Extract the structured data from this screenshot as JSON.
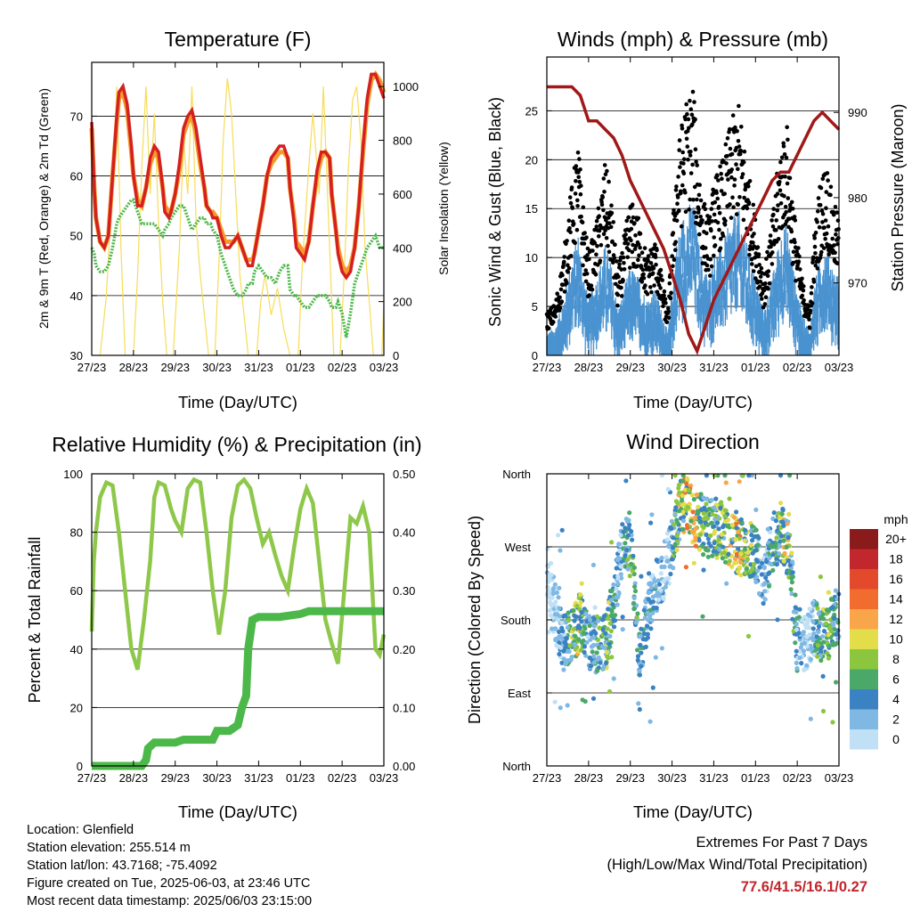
{
  "time_ticks": [
    "27/23",
    "28/23",
    "29/23",
    "30/23",
    "31/23",
    "01/23",
    "02/23",
    "03/23"
  ],
  "xlabel": "Time (Day/UTC)",
  "colors": {
    "temp_2m": "#d42020",
    "temp_9m": "#f59a2a",
    "dewpoint": "#4db84a",
    "solar": "#f7dc58",
    "wind": "#4a93d0",
    "gust": "#000000",
    "pressure": "#a01818",
    "rh": "#8ec84a",
    "rain": "#4db84a"
  },
  "chart_data": [
    {
      "id": "temperature",
      "type": "line",
      "title": "Temperature (F)",
      "ylabel": "2m & 9m T (Red, Orange) & 2m Td (Green)",
      "y2label": "Solar Insolation (Yellow)",
      "ylim": [
        30,
        79
      ],
      "y2lim": [
        0,
        1090
      ],
      "yticks": [
        30,
        40,
        50,
        60,
        70
      ],
      "y2ticks": [
        0,
        200,
        400,
        600,
        800,
        1000
      ],
      "x": [
        0,
        0.06,
        0.1,
        0.2,
        0.3,
        0.4,
        0.5,
        0.6,
        0.65,
        0.75,
        0.85,
        0.95,
        1.0,
        1.1,
        1.2,
        1.3,
        1.4,
        1.5,
        1.6,
        1.7,
        1.75,
        1.85,
        1.9,
        2.0,
        2.1,
        2.2,
        2.3,
        2.4,
        2.5,
        2.6,
        2.7,
        2.75,
        2.85,
        2.9,
        3.0,
        3.1,
        3.2,
        3.3,
        3.4,
        3.5,
        3.6,
        3.7,
        3.75,
        3.85,
        3.9,
        4.0,
        4.1,
        4.2,
        4.3,
        4.4,
        4.5,
        4.6,
        4.7,
        4.75,
        4.85,
        4.9,
        5.0,
        5.1,
        5.2,
        5.3,
        5.4,
        5.5,
        5.6,
        5.7,
        5.75,
        5.85,
        5.9,
        6.0,
        6.1,
        6.2,
        6.3,
        6.4,
        6.5,
        6.6,
        6.7,
        6.8,
        6.9,
        7.0
      ],
      "series": [
        {
          "name": "2m T",
          "values": [
            69,
            58,
            53,
            49,
            48,
            50,
            60,
            70,
            74,
            75,
            72,
            65,
            60,
            55,
            55,
            58,
            63,
            65,
            64,
            58,
            54,
            53,
            54,
            57,
            62,
            68,
            70,
            71,
            68,
            63,
            58,
            55,
            54,
            53,
            53,
            50,
            48,
            48,
            49,
            50,
            48,
            46,
            45,
            45,
            47,
            51,
            55,
            60,
            63,
            64,
            65,
            65,
            63,
            58,
            52,
            48,
            47,
            46,
            49,
            55,
            61,
            64,
            64,
            63,
            57,
            51,
            47,
            44,
            43,
            44,
            48,
            55,
            65,
            73,
            77,
            77,
            75,
            73
          ]
        },
        {
          "name": "9m T",
          "values": [
            68,
            58,
            53,
            49,
            48,
            50,
            60,
            69,
            73,
            74,
            71,
            64,
            60,
            56,
            55,
            58,
            62,
            64,
            63,
            58,
            55,
            54,
            54,
            57,
            61,
            67,
            69,
            70,
            67,
            62,
            58,
            55,
            54,
            54,
            53,
            51,
            49,
            49,
            49,
            50,
            48,
            46,
            46,
            46,
            47,
            51,
            55,
            60,
            62,
            63,
            64,
            64,
            63,
            58,
            53,
            49,
            48,
            47,
            49,
            55,
            60,
            63,
            64,
            63,
            57,
            51,
            48,
            45,
            44,
            45,
            48,
            55,
            64,
            72,
            76,
            77,
            76,
            74
          ]
        },
        {
          "name": "2m Td",
          "values": [
            48,
            47,
            45,
            44,
            44,
            45,
            48,
            52,
            53,
            54,
            55,
            56,
            56,
            54,
            52,
            52,
            52,
            52,
            51,
            50,
            51,
            52,
            53,
            54,
            55,
            55,
            53,
            51,
            52,
            53,
            53,
            52,
            52,
            51,
            50,
            47,
            45,
            43,
            41,
            40,
            40,
            41,
            42,
            42,
            44,
            45,
            44,
            43,
            43,
            42,
            44,
            45,
            45,
            41,
            40,
            40,
            39,
            38,
            38,
            39,
            40,
            40,
            40,
            39,
            38,
            38,
            39,
            37,
            33,
            37,
            42,
            44,
            46,
            48,
            49,
            50,
            48,
            48
          ]
        }
      ],
      "solar": [
        {
          "x": [
            0.2,
            0.35,
            0.5,
            0.6,
            0.7,
            0.8
          ],
          "y": [
            0,
            220,
            650,
            1000,
            400,
            0
          ]
        },
        {
          "x": [
            1.0,
            1.1,
            1.2,
            1.3,
            1.4,
            1.5,
            1.6,
            1.7,
            1.8
          ],
          "y": [
            0,
            300,
            700,
            1000,
            600,
            900,
            500,
            200,
            0
          ]
        },
        {
          "x": [
            1.95,
            2.1,
            2.2,
            2.3,
            2.4,
            2.5,
            2.6,
            2.8
          ],
          "y": [
            0,
            400,
            800,
            600,
            1000,
            500,
            300,
            0
          ]
        },
        {
          "x": [
            2.95,
            3.05,
            3.15,
            3.25,
            3.35,
            3.45,
            3.55,
            3.75
          ],
          "y": [
            0,
            350,
            800,
            1030,
            900,
            600,
            300,
            0
          ]
        },
        {
          "x": [
            3.95,
            4.05,
            4.15,
            4.3,
            4.45,
            4.6,
            4.75
          ],
          "y": [
            0,
            200,
            300,
            150,
            250,
            100,
            0
          ]
        },
        {
          "x": [
            4.95,
            5.05,
            5.2,
            5.3,
            5.45,
            5.55,
            5.7,
            5.8
          ],
          "y": [
            0,
            350,
            700,
            900,
            600,
            1000,
            400,
            0
          ]
        },
        {
          "x": [
            5.95,
            6.05,
            6.15,
            6.25,
            6.35,
            6.45,
            6.55,
            6.75
          ],
          "y": [
            0,
            300,
            700,
            950,
            1000,
            800,
            400,
            0
          ]
        },
        {
          "x": [
            6.95,
            7.0
          ],
          "y": [
            0,
            200
          ]
        }
      ]
    },
    {
      "id": "winds",
      "type": "line",
      "title": "Winds (mph) & Pressure (mb)",
      "ylabel": "Sonic Wind & Gust (Blue, Black)",
      "y2label": "Station Pressure (Maroon)",
      "ylim": [
        0,
        30.5
      ],
      "y2lim": [
        961.5,
        996.5
      ],
      "yticks": [
        0,
        5,
        10,
        15,
        20,
        25
      ],
      "y2ticks": [
        970,
        980,
        990
      ],
      "wind_profile": {
        "x": [
          0,
          0.2,
          0.4,
          0.55,
          0.75,
          0.9,
          1.0,
          1.2,
          1.4,
          1.55,
          1.7,
          1.85,
          2.0,
          2.2,
          2.4,
          2.6,
          2.75,
          2.9,
          3.1,
          3.3,
          3.5,
          3.6,
          3.75,
          3.9,
          4.0,
          4.2,
          4.4,
          4.6,
          4.8,
          5.0,
          5.2,
          5.4,
          5.6,
          5.75,
          5.9,
          6.1,
          6.3,
          6.4,
          6.55,
          6.7,
          6.85,
          7.0
        ],
        "y": [
          2,
          2.5,
          5,
          8,
          11,
          7,
          5,
          7,
          10,
          8,
          4,
          6,
          8,
          7,
          5,
          6,
          4,
          2,
          10,
          13,
          14,
          11,
          8,
          7,
          9,
          10,
          12,
          13,
          10,
          7,
          4,
          7,
          11,
          12,
          8,
          4,
          2,
          6,
          9,
          10,
          8,
          7
        ]
      },
      "pressure": {
        "x": [
          0,
          0.3,
          0.5,
          0.6,
          0.8,
          1.0,
          1.2,
          1.4,
          1.6,
          1.8,
          2.0,
          2.2,
          2.4,
          2.6,
          2.8,
          3.0,
          3.2,
          3.4,
          3.6,
          3.8,
          4.0,
          4.2,
          4.4,
          4.6,
          4.8,
          5.0,
          5.2,
          5.4,
          5.6,
          5.8,
          6.0,
          6.2,
          6.4,
          6.6,
          6.8,
          7.0
        ],
        "y": [
          993,
          993,
          993,
          993,
          992,
          989,
          989,
          988,
          987,
          985,
          982,
          980,
          978,
          976,
          974,
          971,
          968,
          964,
          962,
          965,
          968,
          970,
          972,
          974,
          976,
          978,
          980,
          982,
          983,
          983,
          985,
          987,
          989,
          990,
          989,
          988
        ]
      }
    },
    {
      "id": "rh_precip",
      "type": "line",
      "title": "Relative Humidity (%) & Precipitation (in)",
      "ylabel": "Percent & Total Rainfall",
      "ylim": [
        0,
        100
      ],
      "y2lim": [
        0,
        0.5
      ],
      "yticks": [
        0,
        20,
        40,
        60,
        80,
        100
      ],
      "y2ticks": [
        "0.00",
        "0.10",
        "0.20",
        "0.30",
        "0.40",
        "0.50"
      ],
      "rh": {
        "x": [
          0,
          0.05,
          0.1,
          0.2,
          0.35,
          0.5,
          0.65,
          0.8,
          0.95,
          1.1,
          1.25,
          1.4,
          1.5,
          1.6,
          1.75,
          1.9,
          2.0,
          2.15,
          2.3,
          2.45,
          2.6,
          2.75,
          2.9,
          3.05,
          3.2,
          3.35,
          3.5,
          3.65,
          3.8,
          3.95,
          4.1,
          4.25,
          4.4,
          4.55,
          4.7,
          4.85,
          5.0,
          5.15,
          5.3,
          5.45,
          5.6,
          5.75,
          5.9,
          6.05,
          6.2,
          6.35,
          6.5,
          6.65,
          6.8,
          6.9,
          7.0
        ],
        "y": [
          46,
          70,
          80,
          92,
          97,
          96,
          80,
          60,
          40,
          33,
          50,
          70,
          92,
          97,
          96,
          88,
          84,
          80,
          95,
          98,
          97,
          80,
          60,
          45,
          60,
          85,
          96,
          98,
          95,
          85,
          76,
          80,
          72,
          65,
          60,
          75,
          88,
          95,
          90,
          70,
          50,
          42,
          35,
          60,
          85,
          83,
          89,
          80,
          40,
          38,
          45
        ]
      },
      "rain": {
        "x": [
          0,
          0.5,
          1.0,
          1.2,
          1.3,
          1.35,
          1.5,
          2.0,
          2.2,
          2.5,
          2.9,
          3.0,
          3.1,
          3.3,
          3.5,
          3.6,
          3.7,
          3.75,
          3.85,
          4.0,
          4.5,
          5.0,
          5.2,
          5.3,
          5.5,
          6.0,
          6.5,
          7.0
        ],
        "y": [
          0,
          0,
          0,
          0,
          0.01,
          0.03,
          0.04,
          0.04,
          0.045,
          0.045,
          0.045,
          0.06,
          0.06,
          0.06,
          0.07,
          0.1,
          0.12,
          0.2,
          0.25,
          0.255,
          0.255,
          0.26,
          0.265,
          0.265,
          0.265,
          0.265,
          0.265,
          0.265
        ]
      }
    },
    {
      "id": "wind_direction",
      "type": "scatter",
      "title": "Wind Direction",
      "ylabel": "Direction (Colored By Speed)",
      "ylim": [
        0,
        360
      ],
      "yticks": [
        {
          "v": 0,
          "label": "North"
        },
        {
          "v": 90,
          "label": "East"
        },
        {
          "v": 180,
          "label": "South"
        },
        {
          "v": 270,
          "label": "West"
        },
        {
          "v": 360,
          "label": "North"
        }
      ],
      "centers": {
        "x": [
          0,
          0.2,
          0.4,
          0.6,
          0.8,
          1.0,
          1.2,
          1.4,
          1.6,
          1.8,
          2.0,
          2.2,
          2.4,
          2.6,
          2.8,
          3.0,
          3.2,
          3.4,
          3.6,
          3.8,
          4.0,
          4.2,
          4.4,
          4.6,
          4.8,
          5.0,
          5.2,
          5.4,
          5.6,
          5.8,
          6.0,
          6.2,
          6.4,
          6.6,
          6.8,
          7.0
        ],
        "y": [
          240,
          190,
          150,
          160,
          180,
          150,
          150,
          150,
          200,
          270,
          280,
          140,
          180,
          220,
          240,
          270,
          320,
          320,
          300,
          300,
          290,
          290,
          280,
          270,
          270,
          260,
          230,
          270,
          290,
          265,
          150,
          150,
          170,
          160,
          170,
          190
        ]
      },
      "speed": {
        "x": [
          0,
          0.2,
          0.4,
          0.55,
          0.75,
          0.9,
          1.0,
          1.2,
          1.4,
          1.55,
          1.7,
          1.85,
          2.0,
          2.2,
          2.4,
          2.6,
          2.75,
          2.9,
          3.1,
          3.3,
          3.5,
          3.6,
          3.75,
          3.9,
          4.0,
          4.2,
          4.4,
          4.6,
          4.8,
          5.0,
          5.2,
          5.4,
          5.6,
          5.75,
          5.9,
          6.1,
          6.3,
          6.4,
          6.55,
          6.7,
          6.85,
          7.0
        ],
        "y": [
          2,
          2.5,
          5,
          8,
          11,
          7,
          5,
          7,
          10,
          8,
          4,
          6,
          8,
          7,
          5,
          6,
          4,
          2,
          10,
          13,
          14,
          11,
          8,
          7,
          9,
          10,
          12,
          13,
          10,
          7,
          4,
          7,
          11,
          12,
          8,
          4,
          2,
          6,
          9,
          10,
          8,
          7
        ]
      },
      "legend_title": "mph",
      "legend": [
        {
          "label": "20+",
          "color": "#8b1a1a"
        },
        {
          "label": "18",
          "color": "#c1272d"
        },
        {
          "label": "16",
          "color": "#e34a2c"
        },
        {
          "label": "14",
          "color": "#f26b2f"
        },
        {
          "label": "12",
          "color": "#f9a64a"
        },
        {
          "label": "10",
          "color": "#e3dd4a"
        },
        {
          "label": "8",
          "color": "#8cc63f"
        },
        {
          "label": "6",
          "color": "#4aa968"
        },
        {
          "label": "4",
          "color": "#3a82c2"
        },
        {
          "label": "2",
          "color": "#7fb8e3"
        },
        {
          "label": "0",
          "color": "#bfe0f5"
        }
      ]
    }
  ],
  "info": {
    "location": "Location: Glenfield",
    "elevation": "Station elevation: 255.514 m",
    "latlon": "Station lat/lon: 43.7168; -75.4092",
    "created": "Figure created on Tue, 2025-06-03, at 23:46 UTC",
    "latest": "Most recent data timestamp: 2025/06/03 23:15:00"
  },
  "extremes": {
    "title": "Extremes For Past 7 Days",
    "subtitle": "(High/Low/Max Wind/Total Precipitation)",
    "values": "77.6/41.5/16.1/0.27"
  }
}
